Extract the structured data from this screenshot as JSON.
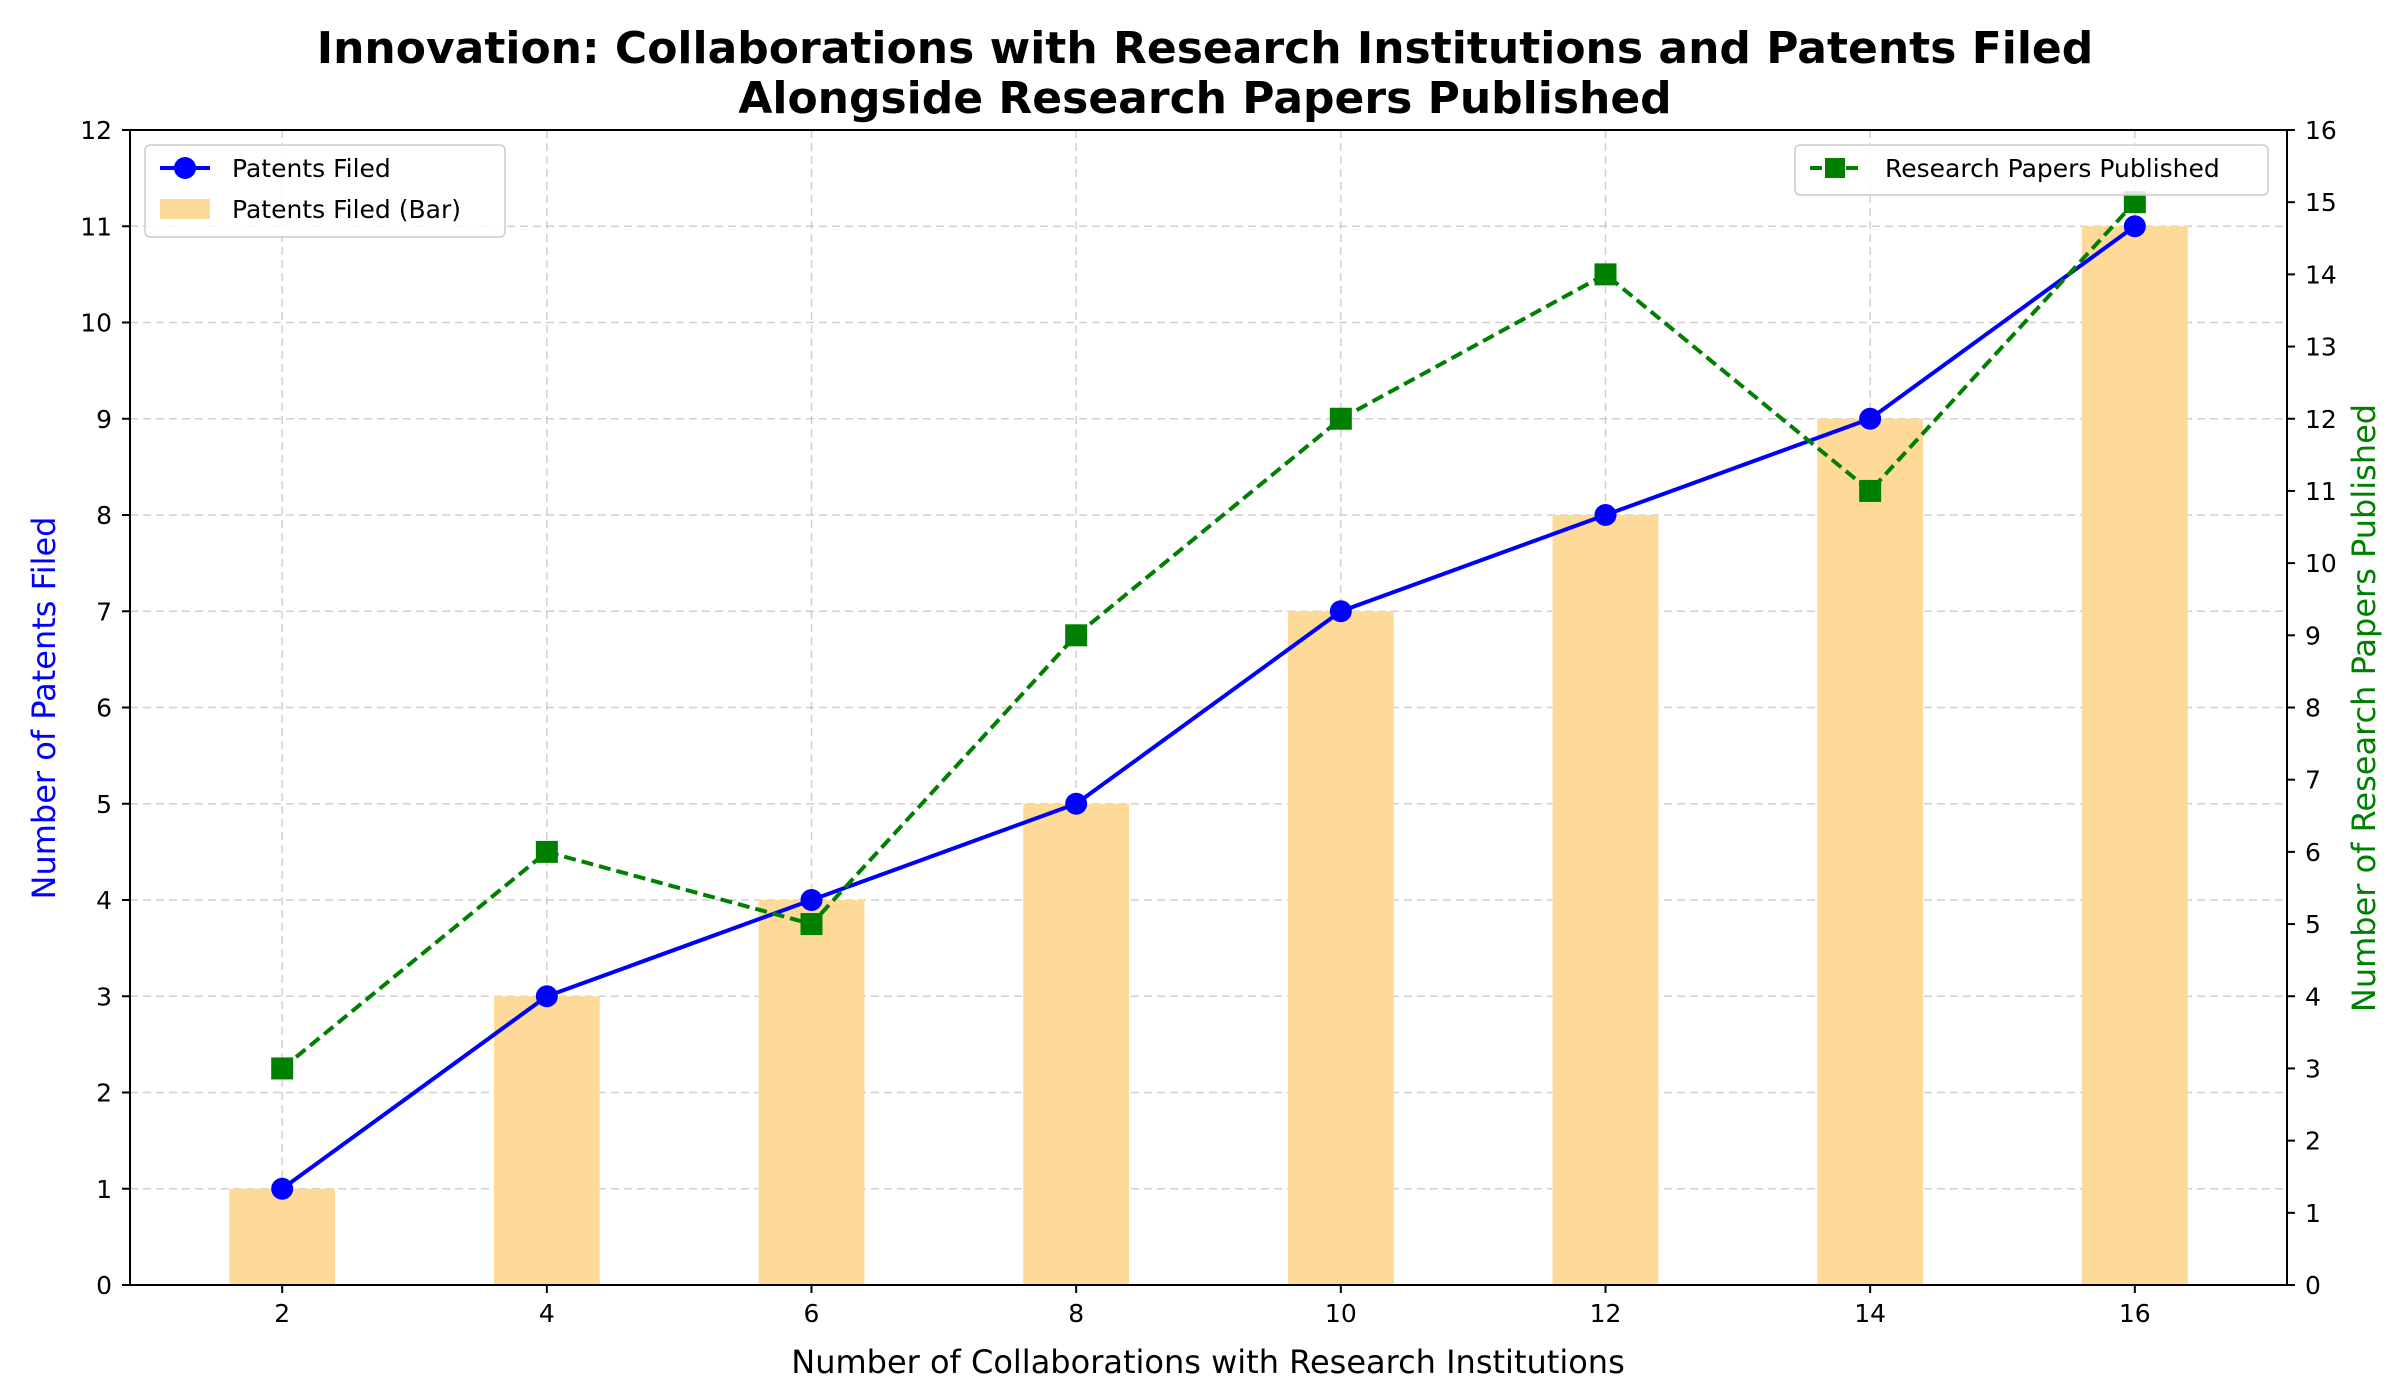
{
  "chart_data": {
    "type": "bar+line",
    "title": [
      "Innovation: Collaborations with Research Institutions and Patents Filed",
      "Alongside Research Papers Published"
    ],
    "xlabel": "Number of Collaborations with Research Institutions",
    "ylabel_left": "Number of Patents Filed",
    "ylabel_right": "Number of Research Papers Published",
    "x": [
      2,
      4,
      6,
      8,
      10,
      12,
      14,
      16
    ],
    "xlim": [
      0.85,
      17.15
    ],
    "ylim_left": [
      0,
      12
    ],
    "ylim_right": [
      0,
      16
    ],
    "yticks_left": [
      0,
      1,
      2,
      3,
      4,
      5,
      6,
      7,
      8,
      9,
      10,
      11,
      12
    ],
    "yticks_right": [
      0,
      1,
      2,
      3,
      4,
      5,
      6,
      7,
      8,
      9,
      10,
      11,
      12,
      13,
      14,
      15,
      16
    ],
    "grid": true,
    "series": [
      {
        "name": "Patents Filed (Bar)",
        "kind": "bar",
        "axis": "left",
        "color": "#FDDA98",
        "values": [
          1,
          3,
          4,
          5,
          7,
          8,
          9,
          11
        ]
      },
      {
        "name": "Patents Filed",
        "kind": "line",
        "marker": "circle",
        "axis": "left",
        "color": "#0000FF",
        "values": [
          1,
          3,
          4,
          5,
          7,
          8,
          9,
          11
        ]
      },
      {
        "name": "Research Papers Published",
        "kind": "line",
        "marker": "square",
        "style": "dashed",
        "axis": "right",
        "color": "#008000",
        "values": [
          3,
          6,
          5,
          9,
          12,
          14,
          11,
          15
        ]
      }
    ],
    "legend_left": {
      "placement": "top-left",
      "entries": [
        "Patents Filed",
        "Patents Filed (Bar)"
      ]
    },
    "legend_right": {
      "placement": "top-right",
      "entries": [
        "Research Papers Published"
      ]
    }
  }
}
